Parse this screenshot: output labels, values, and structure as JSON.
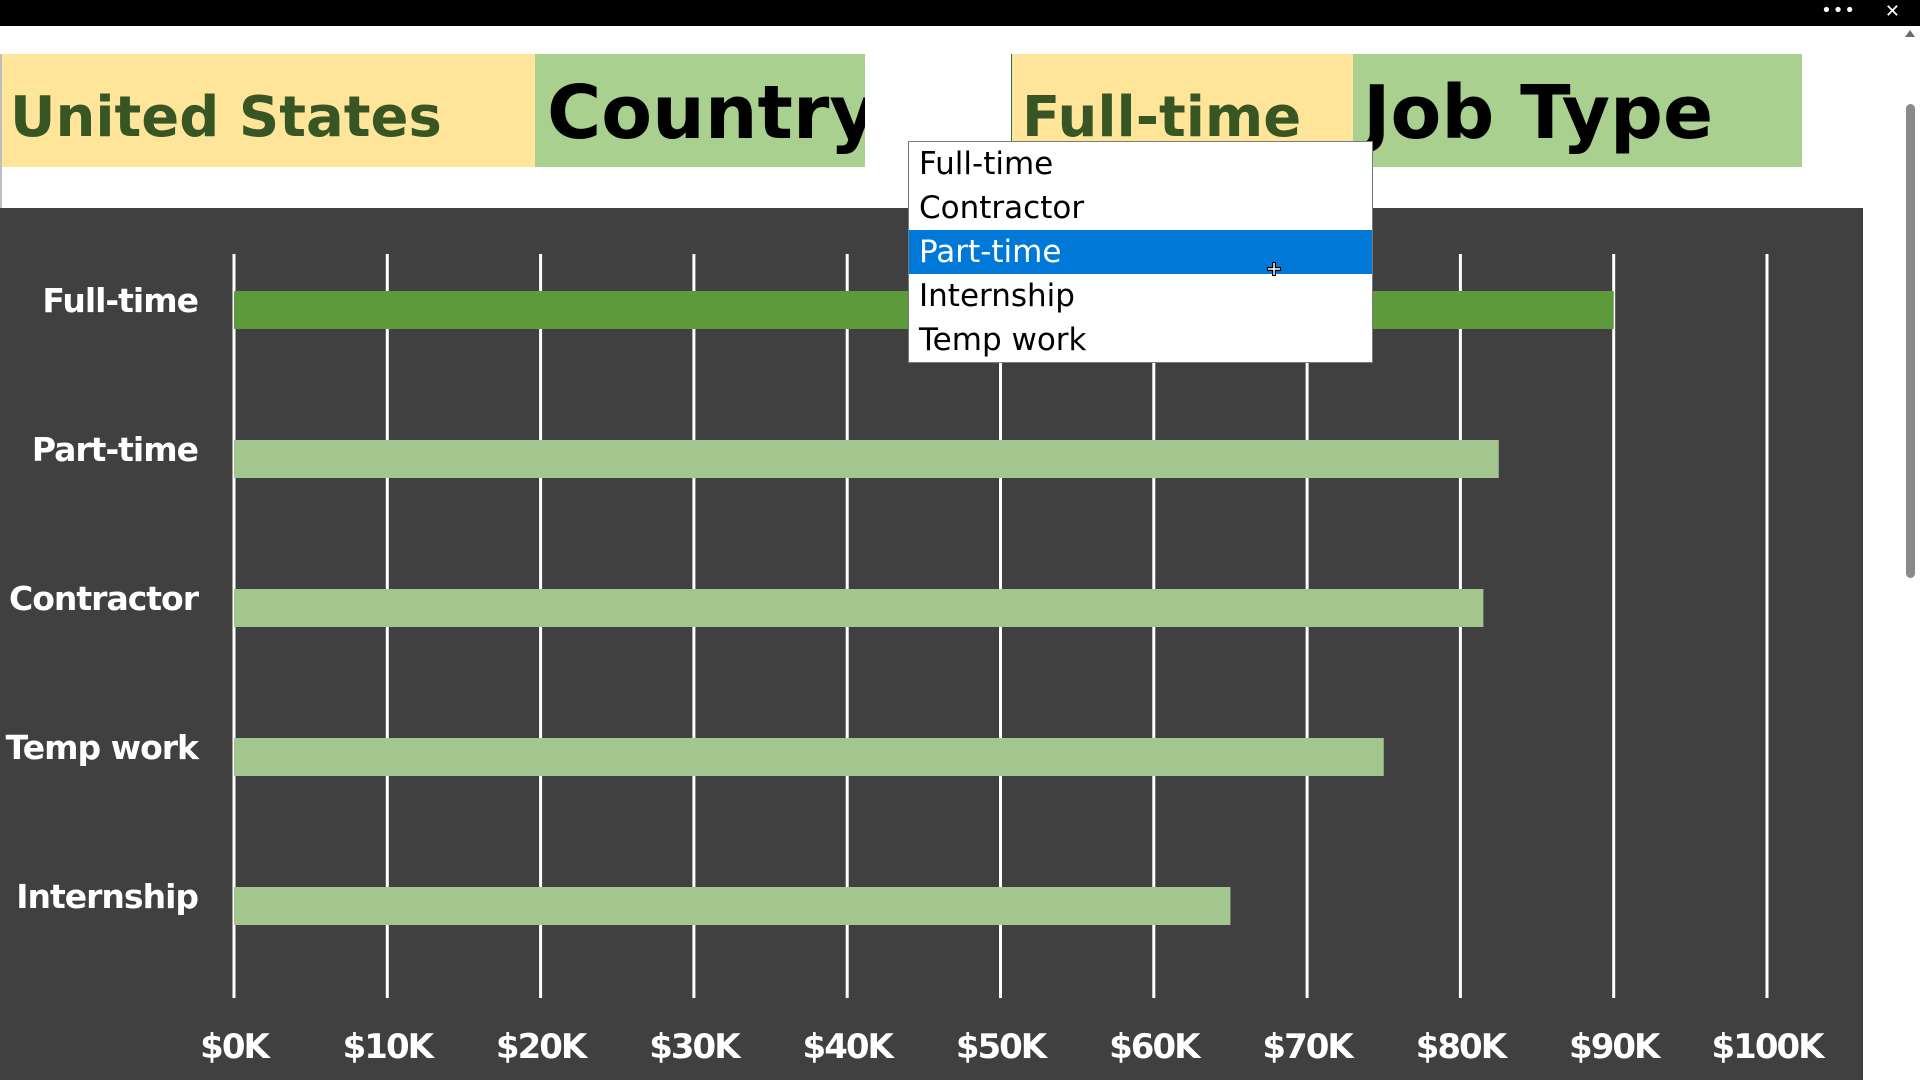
{
  "window": {
    "more_icon": "ellipsis-icon",
    "close_icon": "close-icon",
    "more_glyph": "•••",
    "close_glyph": "✕"
  },
  "header": {
    "country_value": "United States",
    "country_label": "Country",
    "job_type_value": "Full-time",
    "job_type_label": "Job Type"
  },
  "dropdown": {
    "options": [
      "Full-time",
      "Contractor",
      "Part-time",
      "Internship",
      "Temp work"
    ],
    "highlighted": "Part-time"
  },
  "colors": {
    "highlight_bar": "#5d9a3c",
    "bar": "#a3c68f",
    "chart_bg": "#404040",
    "value_cell": "#fee599",
    "label_cell": "#a9d08e",
    "selection": "#0078d7"
  },
  "chart_data": {
    "type": "bar",
    "orientation": "horizontal",
    "categories": [
      "Full-time",
      "Part-time",
      "Contractor",
      "Temp work",
      "Internship"
    ],
    "values": [
      90000,
      82500,
      81500,
      75000,
      65000
    ],
    "highlighted_category": "Full-time",
    "xlim": [
      0,
      100000
    ],
    "x_ticks": [
      0,
      10000,
      20000,
      30000,
      40000,
      50000,
      60000,
      70000,
      80000,
      90000,
      100000
    ],
    "x_tick_labels": [
      "$0K",
      "$10K",
      "$20K",
      "$30K",
      "$40K",
      "$50K",
      "$60K",
      "$70K",
      "$80K",
      "$90K",
      "$100K"
    ],
    "grid": true,
    "title": "",
    "xlabel": "",
    "ylabel": ""
  }
}
